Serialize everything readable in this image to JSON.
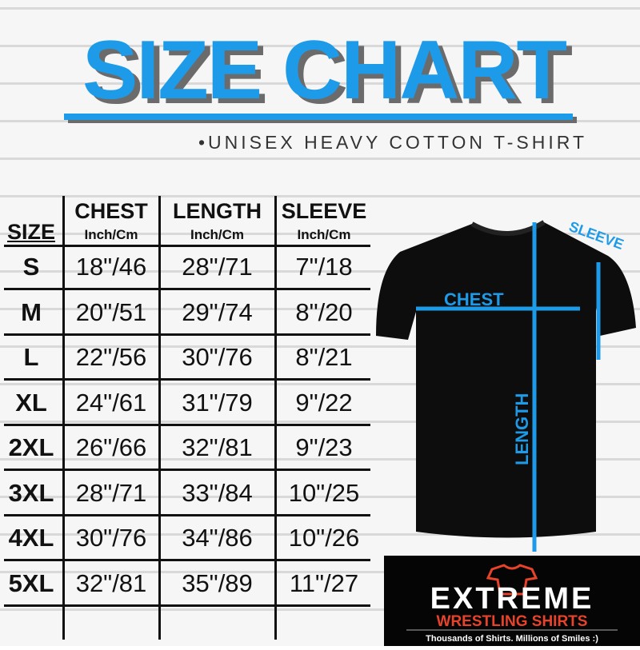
{
  "title": "SIZE CHART",
  "subtitle": "•UNISEX HEAVY COTTON T-SHIRT",
  "table": {
    "headers": {
      "size": "SIZE",
      "chest": "CHEST",
      "length": "LENGTH",
      "sleeve": "SLEEVE",
      "unit": "Inch/Cm"
    },
    "rows": [
      {
        "size": "S",
        "chest": "18\"/46",
        "length": "28\"/71",
        "sleeve": "7\"/18"
      },
      {
        "size": "M",
        "chest": "20\"/51",
        "length": "29\"/74",
        "sleeve": "8\"/20"
      },
      {
        "size": "L",
        "chest": "22\"/56",
        "length": "30\"/76",
        "sleeve": "8\"/21"
      },
      {
        "size": "XL",
        "chest": "24\"/61",
        "length": "31\"/79",
        "sleeve": "9\"/22"
      },
      {
        "size": "2XL",
        "chest": "26\"/66",
        "length": "32\"/81",
        "sleeve": "9\"/23"
      },
      {
        "size": "3XL",
        "chest": "28\"/71",
        "length": "33\"/84",
        "sleeve": "10\"/25"
      },
      {
        "size": "4XL",
        "chest": "30\"/76",
        "length": "34\"/86",
        "sleeve": "10\"/26"
      },
      {
        "size": "5XL",
        "chest": "32\"/81",
        "length": "35\"/89",
        "sleeve": "11\"/27"
      }
    ]
  },
  "diagram": {
    "chest": "CHEST",
    "length": "LENGTH",
    "sleeve": "SLEEVE"
  },
  "logo": {
    "word": "EXTREME",
    "sub": "WRESTLING SHIRTS",
    "tagline": "Thousands of Shirts. Millions of Smiles :)"
  },
  "colors": {
    "accent": "#1e9be8",
    "logo_red": "#e8432a"
  }
}
